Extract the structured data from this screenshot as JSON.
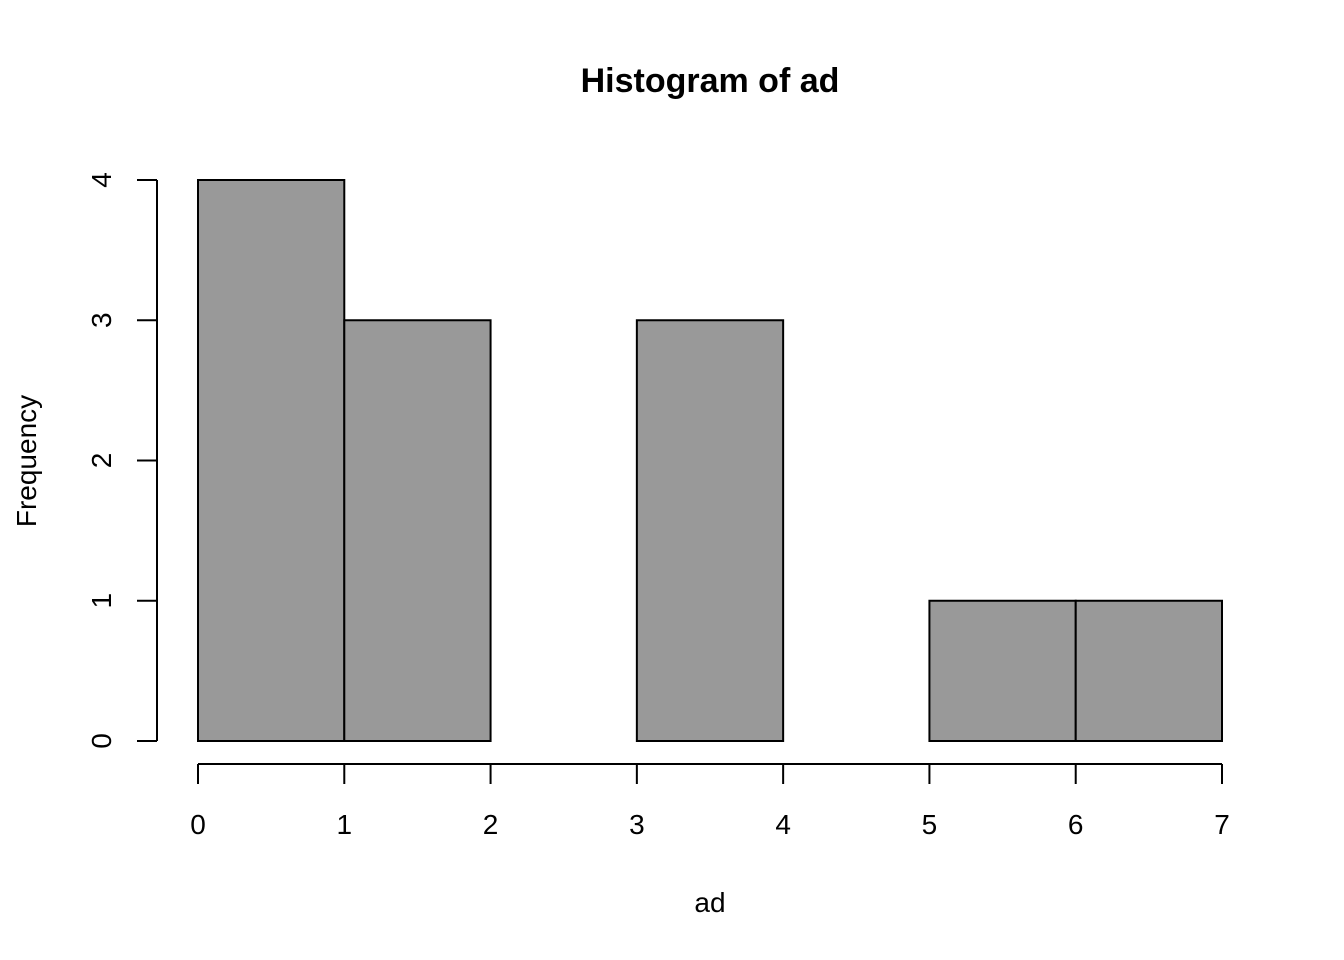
{
  "chart_data": {
    "type": "bar",
    "title": "Histogram of ad",
    "xlabel": "ad",
    "ylabel": "Frequency",
    "bins": [
      {
        "start": 0,
        "end": 1,
        "count": 4
      },
      {
        "start": 1,
        "end": 2,
        "count": 3
      },
      {
        "start": 2,
        "end": 3,
        "count": 0
      },
      {
        "start": 3,
        "end": 4,
        "count": 3
      },
      {
        "start": 4,
        "end": 5,
        "count": 0
      },
      {
        "start": 5,
        "end": 6,
        "count": 1
      },
      {
        "start": 6,
        "end": 7,
        "count": 1
      }
    ],
    "xlim": [
      0,
      7
    ],
    "ylim": [
      0,
      4
    ],
    "x_ticks": [
      "0",
      "1",
      "2",
      "3",
      "4",
      "5",
      "6",
      "7"
    ],
    "y_ticks": [
      "0",
      "1",
      "2",
      "3",
      "4"
    ],
    "grid": false,
    "bar_color": "#999999",
    "edge_color": "#000000"
  }
}
